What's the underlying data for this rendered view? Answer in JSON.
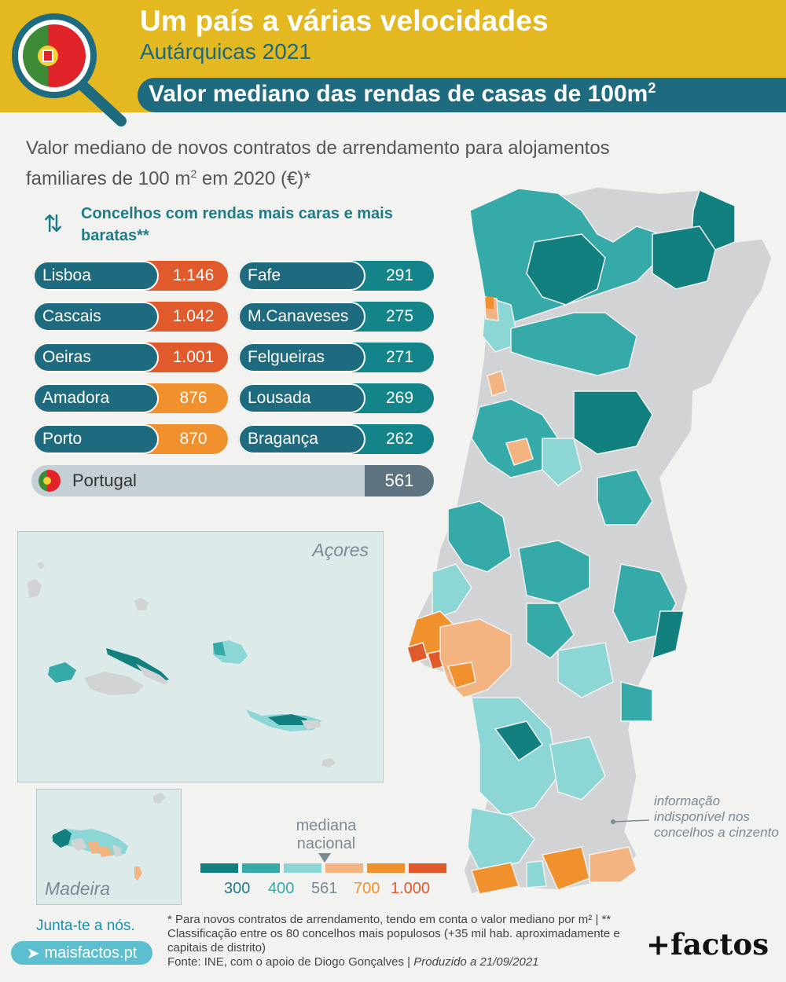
{
  "header": {
    "title": "Um país a várias velocidades",
    "subtitle": "Autárquicas 2021",
    "banner": "Valor mediano das rendas de casas de 100m",
    "banner_sup": "2"
  },
  "lead": {
    "line1": "Valor mediano de novos contratos de arrendamento para alojamentos",
    "line2_a": "familiares de 100 m",
    "line2_sup": "2",
    "line2_b": " em 2020 (€)*"
  },
  "ranking": {
    "heading": "Concelhos com rendas mais caras e mais baratas**",
    "expensive": [
      {
        "name": "Lisboa",
        "value": "1.146",
        "color": "#e05a2b"
      },
      {
        "name": "Cascais",
        "value": "1.042",
        "color": "#e05a2b"
      },
      {
        "name": "Oeiras",
        "value": "1.001",
        "color": "#e05a2b"
      },
      {
        "name": "Amadora",
        "value": "876",
        "color": "#f0912e"
      },
      {
        "name": "Porto",
        "value": "870",
        "color": "#f0912e"
      }
    ],
    "cheap": [
      {
        "name": "Fafe",
        "value": "291",
        "color": "#13858a"
      },
      {
        "name": "M.Canaveses",
        "value": "275",
        "color": "#13858a"
      },
      {
        "name": "Felgueiras",
        "value": "271",
        "color": "#13858a"
      },
      {
        "name": "Lousada",
        "value": "269",
        "color": "#13858a"
      },
      {
        "name": "Bragança",
        "value": "262",
        "color": "#13858a"
      }
    ],
    "national": {
      "name": "Portugal",
      "value": "561"
    }
  },
  "maps": {
    "acores_label": "Açores",
    "madeira_label": "Madeira",
    "gray_note": "informação indisponível nos concelhos a cinzento"
  },
  "legend": {
    "title": "mediana nacional",
    "colors": [
      "#12807f",
      "#35aaa8",
      "#8dd6d6",
      "#f3b481",
      "#f0912e",
      "#e05a2b"
    ],
    "ticks": [
      {
        "label": "300",
        "color": "#1f7b88"
      },
      {
        "label": "400",
        "color": "#35aaa8"
      },
      {
        "label": "561",
        "color": "#7a8a94"
      },
      {
        "label": "700",
        "color": "#f0912e"
      },
      {
        "label": "1.000",
        "color": "#e05a2b"
      }
    ]
  },
  "footer": {
    "join": "Junta-te a nós.",
    "site": "maisfactos.pt",
    "note1": "* Para novos contratos de arrendamento, tendo em conta o valor mediano por m² | ** Classificação entre os 80 concelhos mais populosos (+35 mil hab. aproximadamente e capitais de distrito)",
    "note2": "Fonte: INE, com o apoio de Diogo Gonçalves | ",
    "note3": "Produzido a 21/09/2021",
    "brand": "+factos"
  }
}
